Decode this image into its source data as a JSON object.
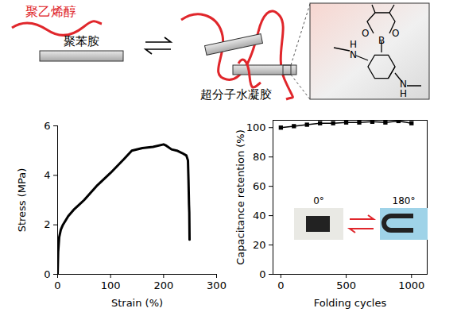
{
  "diagram": {
    "labels": {
      "pva": "聚乙烯醇",
      "pani": "聚苯胺",
      "hydrogel": "超分子水凝胶"
    },
    "structure_atoms": [
      "O",
      "B",
      "O",
      "H",
      "N",
      "N",
      "H"
    ]
  },
  "chart_data": [
    {
      "type": "line",
      "x_label": "Strain (%)",
      "y_label": "Stress (MPa)",
      "x": [
        0,
        1,
        3,
        6,
        10,
        20,
        30,
        50,
        75,
        100,
        125,
        140,
        160,
        180,
        200,
        205,
        215,
        225,
        235,
        243,
        246,
        247,
        248,
        248.5,
        249
      ],
      "values": [
        0,
        0.9,
        1.5,
        1.8,
        2.0,
        2.35,
        2.6,
        3.0,
        3.6,
        4.1,
        4.65,
        5.0,
        5.1,
        5.15,
        5.25,
        5.2,
        5.05,
        5.0,
        4.9,
        4.8,
        4.6,
        3.8,
        2.8,
        2.5,
        1.4
      ],
      "color": "#000000",
      "xlim": [
        0,
        300
      ],
      "xticks": [
        0,
        100,
        200,
        300
      ],
      "ylim": [
        0,
        6
      ],
      "yticks": [
        0,
        2,
        4,
        6
      ]
    },
    {
      "type": "line",
      "x_label": "Folding cycles",
      "y_label": "Capacitance retention (%)",
      "x": [
        0,
        100,
        200,
        300,
        400,
        500,
        600,
        700,
        800,
        900,
        1000
      ],
      "values": [
        100,
        101,
        102,
        103,
        103,
        103.5,
        103.5,
        104,
        103.5,
        104.5,
        103
      ],
      "color": "#000000",
      "marker": "square",
      "xlim": [
        -60,
        1120
      ],
      "xticks": [
        0,
        500,
        1000
      ],
      "ylim": [
        0,
        105
      ],
      "yticks": [
        0,
        20,
        40,
        60,
        80,
        100
      ],
      "annotations": [
        "0°",
        "180°"
      ]
    }
  ]
}
